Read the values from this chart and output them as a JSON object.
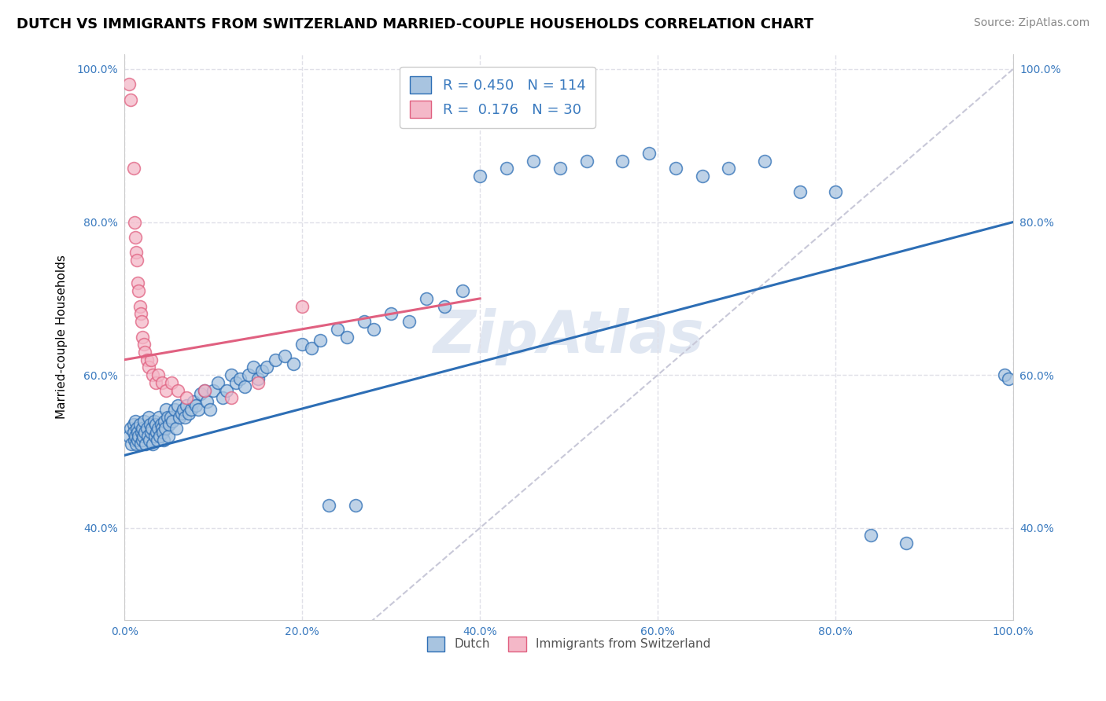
{
  "title": "DUTCH VS IMMIGRANTS FROM SWITZERLAND MARRIED-COUPLE HOUSEHOLDS CORRELATION CHART",
  "source": "Source: ZipAtlas.com",
  "ylabel": "Married-couple Households",
  "xlabel": "",
  "xlim": [
    0,
    1
  ],
  "ylim": [
    0.28,
    1.02
  ],
  "xticks": [
    0,
    0.2,
    0.4,
    0.6,
    0.8,
    1.0
  ],
  "yticks": [
    0.4,
    0.6,
    0.8,
    1.0
  ],
  "xticklabels": [
    "0.0%",
    "20.0%",
    "40.0%",
    "60.0%",
    "80.0%",
    "100.0%"
  ],
  "yticklabels": [
    "40.0%",
    "60.0%",
    "80.0%",
    "100.0%"
  ],
  "dutch_color": "#a8c4e0",
  "swiss_color": "#f4b8c8",
  "dutch_line_color": "#2d6eb5",
  "swiss_line_color": "#e06080",
  "diagonal_color": "#c8c8d8",
  "watermark_color": "#c8d4e8",
  "legend_dutch_R": "0.450",
  "legend_dutch_N": "114",
  "legend_swiss_R": "0.176",
  "legend_swiss_N": "30",
  "title_fontsize": 13,
  "source_fontsize": 10,
  "label_fontsize": 11,
  "tick_fontsize": 10,
  "legend_fontsize": 13,
  "dutch_x": [
    0.005,
    0.007,
    0.008,
    0.01,
    0.01,
    0.011,
    0.012,
    0.012,
    0.013,
    0.014,
    0.015,
    0.015,
    0.016,
    0.017,
    0.018,
    0.019,
    0.02,
    0.02,
    0.021,
    0.022,
    0.023,
    0.024,
    0.025,
    0.026,
    0.027,
    0.028,
    0.029,
    0.03,
    0.031,
    0.032,
    0.033,
    0.034,
    0.035,
    0.036,
    0.037,
    0.038,
    0.039,
    0.04,
    0.041,
    0.042,
    0.043,
    0.044,
    0.045,
    0.046,
    0.047,
    0.048,
    0.049,
    0.05,
    0.052,
    0.054,
    0.056,
    0.058,
    0.06,
    0.062,
    0.064,
    0.066,
    0.068,
    0.07,
    0.072,
    0.075,
    0.078,
    0.08,
    0.083,
    0.086,
    0.09,
    0.093,
    0.096,
    0.1,
    0.105,
    0.11,
    0.115,
    0.12,
    0.125,
    0.13,
    0.135,
    0.14,
    0.145,
    0.15,
    0.155,
    0.16,
    0.17,
    0.18,
    0.19,
    0.2,
    0.21,
    0.22,
    0.23,
    0.24,
    0.25,
    0.26,
    0.27,
    0.28,
    0.3,
    0.32,
    0.34,
    0.36,
    0.38,
    0.4,
    0.43,
    0.46,
    0.49,
    0.52,
    0.56,
    0.59,
    0.62,
    0.65,
    0.68,
    0.72,
    0.76,
    0.8,
    0.84,
    0.88,
    0.99,
    0.995
  ],
  "dutch_y": [
    0.52,
    0.53,
    0.51,
    0.535,
    0.525,
    0.515,
    0.54,
    0.52,
    0.51,
    0.53,
    0.525,
    0.515,
    0.52,
    0.535,
    0.51,
    0.525,
    0.53,
    0.515,
    0.52,
    0.54,
    0.525,
    0.51,
    0.53,
    0.52,
    0.545,
    0.515,
    0.535,
    0.525,
    0.53,
    0.51,
    0.54,
    0.52,
    0.535,
    0.525,
    0.515,
    0.53,
    0.545,
    0.52,
    0.535,
    0.53,
    0.525,
    0.515,
    0.54,
    0.53,
    0.555,
    0.545,
    0.52,
    0.535,
    0.545,
    0.54,
    0.555,
    0.53,
    0.56,
    0.545,
    0.55,
    0.555,
    0.545,
    0.56,
    0.55,
    0.555,
    0.565,
    0.56,
    0.555,
    0.575,
    0.58,
    0.565,
    0.555,
    0.58,
    0.59,
    0.57,
    0.58,
    0.6,
    0.59,
    0.595,
    0.585,
    0.6,
    0.61,
    0.595,
    0.605,
    0.61,
    0.62,
    0.625,
    0.615,
    0.64,
    0.635,
    0.645,
    0.43,
    0.66,
    0.65,
    0.43,
    0.67,
    0.66,
    0.68,
    0.67,
    0.7,
    0.69,
    0.71,
    0.86,
    0.87,
    0.88,
    0.87,
    0.88,
    0.88,
    0.89,
    0.87,
    0.86,
    0.87,
    0.88,
    0.84,
    0.84,
    0.39,
    0.38,
    0.6,
    0.595
  ],
  "swiss_x": [
    0.005,
    0.007,
    0.01,
    0.011,
    0.012,
    0.013,
    0.014,
    0.015,
    0.016,
    0.017,
    0.018,
    0.019,
    0.02,
    0.022,
    0.023,
    0.025,
    0.027,
    0.03,
    0.032,
    0.035,
    0.038,
    0.042,
    0.047,
    0.053,
    0.06,
    0.07,
    0.09,
    0.12,
    0.15,
    0.2
  ],
  "swiss_y": [
    0.98,
    0.96,
    0.87,
    0.8,
    0.78,
    0.76,
    0.75,
    0.72,
    0.71,
    0.69,
    0.68,
    0.67,
    0.65,
    0.64,
    0.63,
    0.62,
    0.61,
    0.62,
    0.6,
    0.59,
    0.6,
    0.59,
    0.58,
    0.59,
    0.58,
    0.57,
    0.58,
    0.57,
    0.59,
    0.69
  ],
  "dutch_line_start_x": 0.0,
  "dutch_line_end_x": 1.0,
  "dutch_line_start_y": 0.495,
  "dutch_line_end_y": 0.8,
  "swiss_line_start_x": 0.0,
  "swiss_line_end_x": 0.4,
  "swiss_line_start_y": 0.62,
  "swiss_line_end_y": 0.7
}
